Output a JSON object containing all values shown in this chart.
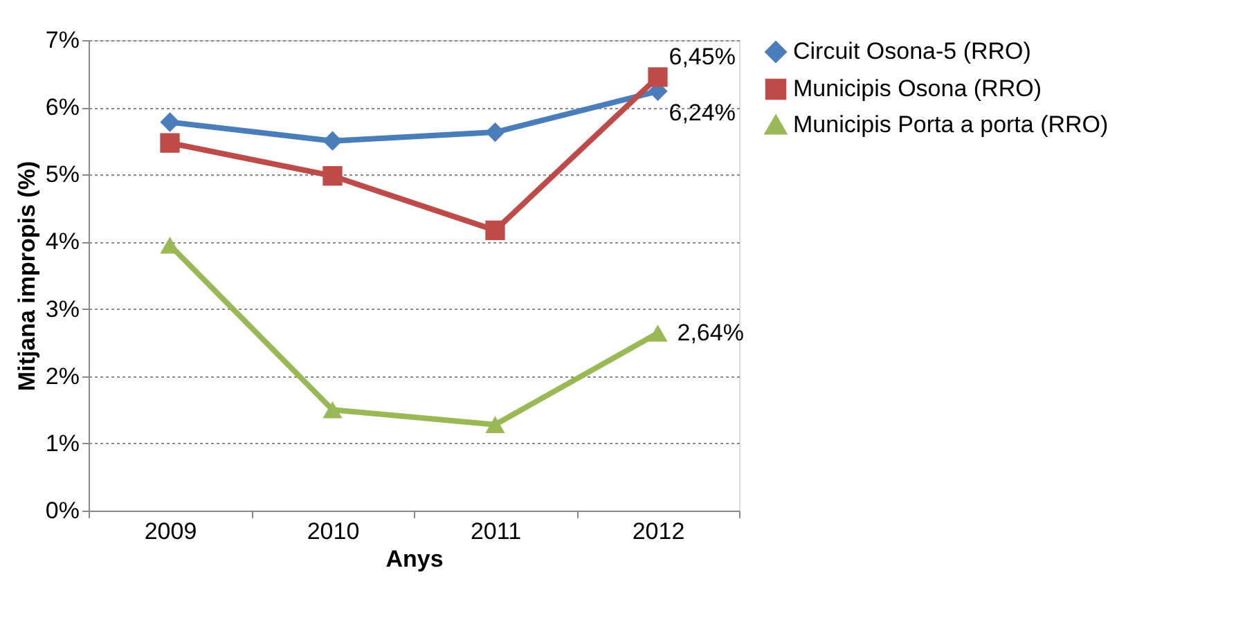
{
  "chart_data": {
    "type": "line",
    "xlabel": "Anys",
    "ylabel": "Mitjana impropis (%)",
    "categories": [
      "2009",
      "2010",
      "2011",
      "2012"
    ],
    "series": [
      {
        "name": "Circuit Osona-5 (RRO)",
        "color": "#4a7ebb",
        "marker": "diamond",
        "values": [
          5.78,
          5.5,
          5.63,
          6.24
        ],
        "value_labels": [
          null,
          null,
          null,
          "6,24%"
        ]
      },
      {
        "name": "Municipis Osona (RRO)",
        "color": "#be4b48",
        "marker": "square",
        "values": [
          5.47,
          4.98,
          4.17,
          6.45
        ],
        "value_labels": [
          null,
          null,
          null,
          "6,45%"
        ]
      },
      {
        "name": "Municipis Porta a porta (RRO)",
        "color": "#98b954",
        "marker": "triangle",
        "values": [
          3.95,
          1.5,
          1.28,
          2.64
        ],
        "value_labels": [
          null,
          null,
          null,
          "2,64%"
        ]
      }
    ],
    "ylim": [
      0,
      7
    ],
    "yticks": [
      {
        "value": 0,
        "label": "0%"
      },
      {
        "value": 1,
        "label": "1%"
      },
      {
        "value": 2,
        "label": "2%"
      },
      {
        "value": 3,
        "label": "3%"
      },
      {
        "value": 4,
        "label": "4%"
      },
      {
        "value": 5,
        "label": "5%"
      },
      {
        "value": 6,
        "label": "6%"
      },
      {
        "value": 7,
        "label": "7%"
      }
    ],
    "grid": "y",
    "legend": "right",
    "line_style": "solid"
  }
}
